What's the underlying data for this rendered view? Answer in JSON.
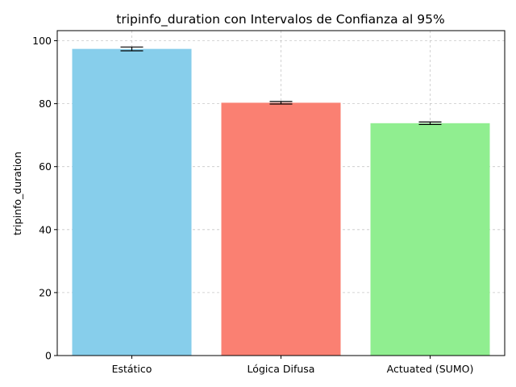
{
  "chart_data": {
    "type": "bar",
    "title": "tripinfo_duration con Intervalos de Confianza al 95%",
    "xlabel": "",
    "ylabel": "tripinfo_duration",
    "categories": [
      "Estático",
      "Lógica Difusa",
      "Actuated (SUMO)"
    ],
    "values": [
      97.4,
      80.3,
      73.8
    ],
    "error": [
      0.6,
      0.4,
      0.4
    ],
    "colors": [
      "#87ceeb",
      "#fa8072",
      "#90ee90"
    ],
    "ylim": [
      0,
      103.2
    ],
    "yticks": [
      0,
      20,
      40,
      60,
      80,
      100
    ],
    "ytick_labels": [
      "0",
      "20",
      "40",
      "60",
      "80",
      "100"
    ],
    "grid": true,
    "legend": "none"
  }
}
